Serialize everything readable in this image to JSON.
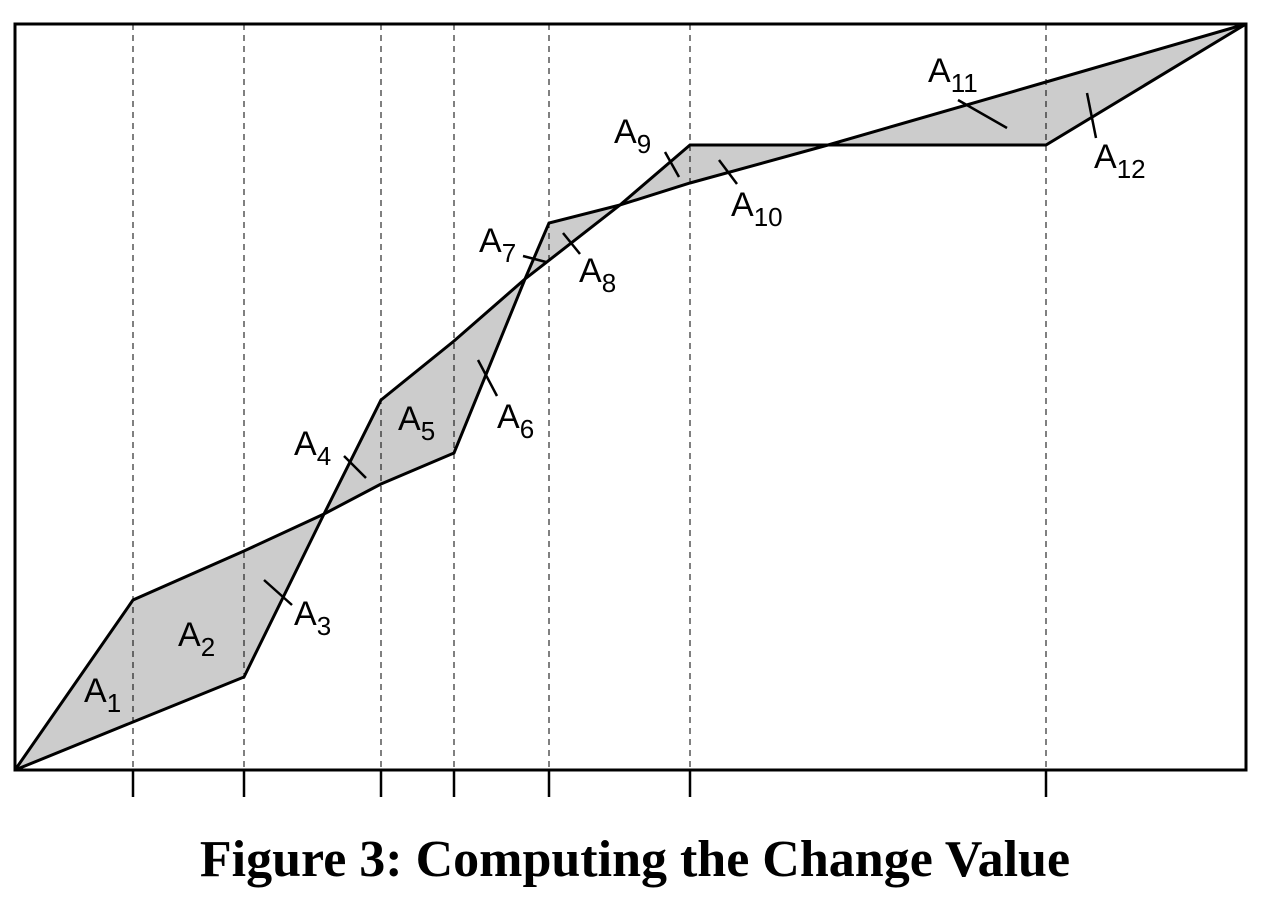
{
  "caption": "Figure 3: Computing the Change Value",
  "colors": {
    "fill": "#cccccc",
    "stroke": "#000000",
    "background": "#ffffff"
  },
  "area_labels": [
    {
      "base": "A",
      "sub": "1"
    },
    {
      "base": "A",
      "sub": "2"
    },
    {
      "base": "A",
      "sub": "3"
    },
    {
      "base": "A",
      "sub": "4"
    },
    {
      "base": "A",
      "sub": "5"
    },
    {
      "base": "A",
      "sub": "6"
    },
    {
      "base": "A",
      "sub": "7"
    },
    {
      "base": "A",
      "sub": "8"
    },
    {
      "base": "A",
      "sub": "9"
    },
    {
      "base": "A",
      "sub": "10"
    },
    {
      "base": "A",
      "sub": "11"
    },
    {
      "base": "A",
      "sub": "12"
    }
  ]
}
